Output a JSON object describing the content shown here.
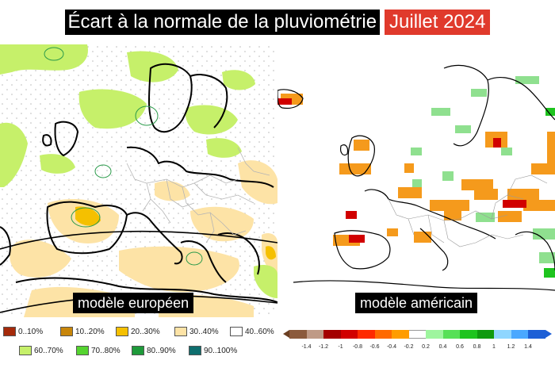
{
  "title": {
    "main": "Écart à la normale de la pluviométrie",
    "date": "Juillet 2024",
    "date_color": "#e03a2c"
  },
  "maps": {
    "european": {
      "label": "modèle européen",
      "dry_color": "#fde3a6",
      "wet_color": "#c6f06a"
    },
    "american": {
      "label": "modèle américain",
      "dry_color": "#f59a1c",
      "wet_color": "#8fe08f"
    }
  },
  "legend_european": [
    {
      "label": "0..10%",
      "color": "#a52a0a"
    },
    {
      "label": "10..20%",
      "color": "#c8860a"
    },
    {
      "label": "20..30%",
      "color": "#f5c000"
    },
    {
      "label": "30..40%",
      "color": "#fde3a6"
    },
    {
      "label": "40..60%",
      "color": "#ffffff"
    },
    {
      "label": "60..70%",
      "color": "#c6f06a"
    },
    {
      "label": "70..80%",
      "color": "#55d430"
    },
    {
      "label": "80..90%",
      "color": "#1e9a3a"
    },
    {
      "label": "90..100%",
      "color": "#0e6e6e"
    }
  ],
  "legend_american": {
    "colors": [
      "#8b5a3c",
      "#bf9a86",
      "#a40000",
      "#d10000",
      "#ff2a00",
      "#ff6a00",
      "#ff9c00",
      "#ffffff",
      "#9ef59e",
      "#57e057",
      "#1ec41e",
      "#0f9a0f",
      "#8fd6ff",
      "#4aa8ff",
      "#1d5fd6"
    ],
    "ticks": [
      "-1.4",
      "-1.2",
      "-1",
      "-0.8",
      "-0.6",
      "-0.4",
      "-0.2",
      "0.2",
      "0.4",
      "0.6",
      "0.8",
      "1",
      "1.2",
      "1.4"
    ]
  }
}
